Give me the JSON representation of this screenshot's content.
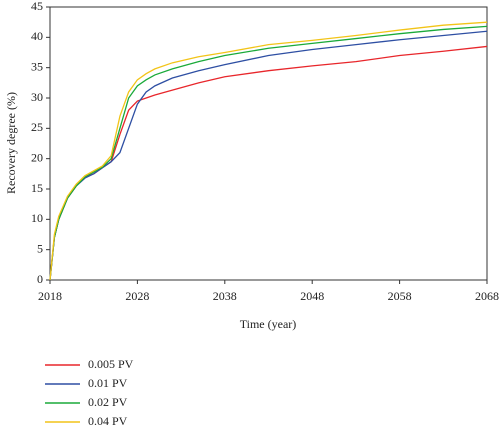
{
  "chart_data": {
    "type": "line",
    "x_label": "Time (year)",
    "y_label": "Recovery degree (%)",
    "x": [
      2018,
      2018.5,
      2019,
      2020,
      2021,
      2022,
      2023,
      2024,
      2025,
      2026,
      2027,
      2028,
      2029,
      2030,
      2032,
      2035,
      2038,
      2043,
      2048,
      2053,
      2058,
      2063,
      2068
    ],
    "series": [
      {
        "name": "0.005 PV",
        "color": "#e8262b",
        "values": [
          0,
          7,
          10,
          13.5,
          15.5,
          17,
          17.5,
          18.5,
          19.5,
          24,
          28,
          29.5,
          30,
          30.5,
          31.3,
          32.5,
          33.5,
          34.5,
          35.3,
          36,
          37,
          37.7,
          38.5
        ]
      },
      {
        "name": "0.01 PV",
        "color": "#2e4fa3",
        "values": [
          0,
          7,
          10,
          13.5,
          15.5,
          16.8,
          17.5,
          18.5,
          19.5,
          21,
          25,
          29,
          31,
          32,
          33.3,
          34.5,
          35.5,
          37,
          38,
          38.8,
          39.6,
          40.3,
          41
        ]
      },
      {
        "name": "0.02 PV",
        "color": "#1aaa3a",
        "values": [
          0,
          7,
          10,
          13.5,
          15.5,
          17,
          17.8,
          18.6,
          20,
          25,
          30,
          32,
          33,
          33.8,
          34.8,
          36,
          37,
          38.2,
          39,
          39.8,
          40.6,
          41.3,
          41.8
        ]
      },
      {
        "name": "0.04 PV",
        "color": "#f2c418",
        "values": [
          0,
          7.5,
          10.5,
          13.8,
          15.8,
          17.2,
          18,
          18.8,
          20.5,
          27,
          31,
          33,
          34,
          34.8,
          35.8,
          36.8,
          37.5,
          38.8,
          39.5,
          40.3,
          41.2,
          42,
          42.5
        ]
      }
    ],
    "xlim": [
      2018,
      2068
    ],
    "xticks": [
      2018,
      2028,
      2038,
      2048,
      2058,
      2068
    ],
    "ylim": [
      0,
      45
    ],
    "yticks": [
      0,
      5,
      10,
      15,
      20,
      25,
      30,
      35,
      40,
      45
    ]
  }
}
